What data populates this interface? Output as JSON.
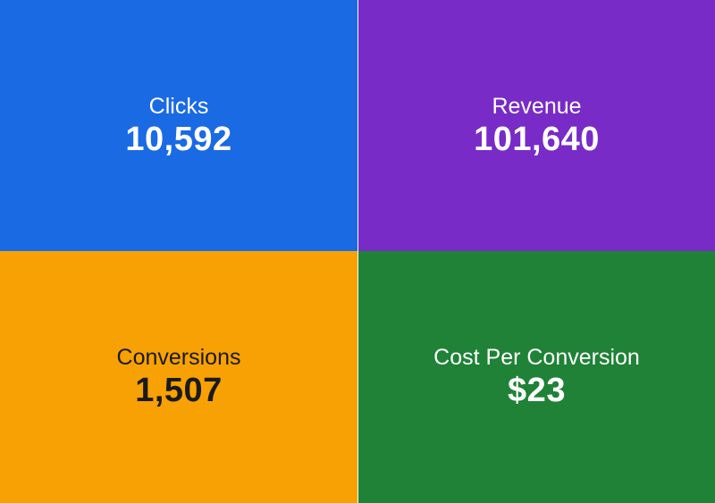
{
  "metrics": [
    {
      "id": "clicks",
      "label": "Clicks",
      "value": "10,592",
      "color": "#1a6ae4"
    },
    {
      "id": "revenue",
      "label": "Revenue",
      "value": "101,640",
      "color": "#782bc6"
    },
    {
      "id": "conversions",
      "label": "Conversions",
      "value": "1,507",
      "color": "#f8a104"
    },
    {
      "id": "cost_per_conversion",
      "label": "Cost Per Conversion",
      "value": "$23",
      "color": "#1f8236"
    }
  ]
}
